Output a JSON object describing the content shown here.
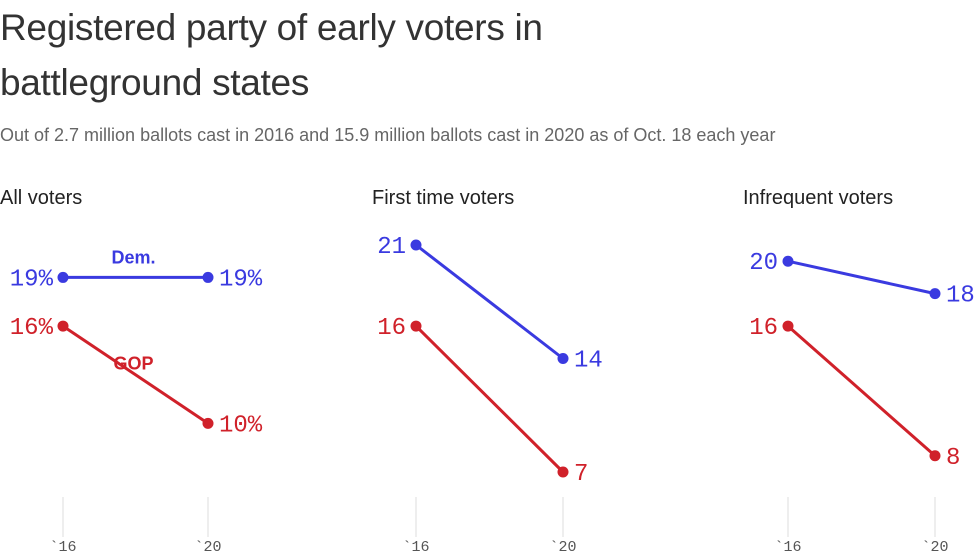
{
  "title": "Registered party of early voters in battleground states",
  "subtitle": "Out of 2.7 million ballots cast in 2016 and 15.9 million ballots cast in 2020 as of Oct. 18 each year",
  "colors": {
    "dem": "#3a3ae0",
    "gop": "#d0212a",
    "axis": "#dddddd",
    "text": "#333333"
  },
  "chart_data": [
    {
      "type": "line",
      "title": "All voters",
      "x": [
        "`16",
        "`20"
      ],
      "value_suffix": "%",
      "series": [
        {
          "name": "Dem.",
          "key": "dem",
          "values": [
            19,
            19
          ]
        },
        {
          "name": "GOP",
          "key": "gop",
          "values": [
            16,
            10
          ]
        }
      ],
      "ylim": [
        4,
        22
      ]
    },
    {
      "type": "line",
      "title": "First time voters",
      "x": [
        "`16",
        "`20"
      ],
      "value_suffix": "",
      "series": [
        {
          "key": "dem",
          "values": [
            21,
            14
          ]
        },
        {
          "key": "gop",
          "values": [
            16,
            7
          ]
        }
      ],
      "ylim": [
        4,
        22
      ]
    },
    {
      "type": "line",
      "title": "Infrequent voters",
      "x": [
        "`16",
        "`20"
      ],
      "value_suffix": "",
      "series": [
        {
          "key": "dem",
          "values": [
            20,
            18
          ]
        },
        {
          "key": "gop",
          "values": [
            16,
            8
          ]
        }
      ],
      "ylim": [
        4,
        22
      ]
    }
  ]
}
